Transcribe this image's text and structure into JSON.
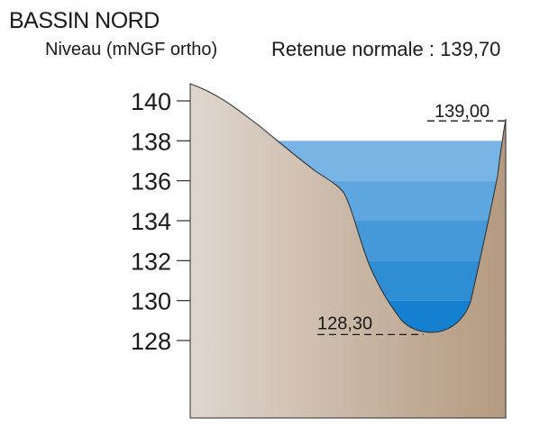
{
  "title": "BASSIN NORD",
  "axis_label": "Niveau (mNGF ortho)",
  "normal_level": "Retenue normale : 139,70",
  "ticks": [
    {
      "value": 140,
      "label": "140"
    },
    {
      "value": 138,
      "label": "138"
    },
    {
      "value": 136,
      "label": "136"
    },
    {
      "value": 134,
      "label": "134"
    },
    {
      "value": 132,
      "label": "132"
    },
    {
      "value": 130,
      "label": "130"
    },
    {
      "value": 128,
      "label": "128"
    }
  ],
  "annotations": {
    "crest": {
      "value": 139.0,
      "label": "139,00"
    },
    "bottom": {
      "value": 128.3,
      "label": "128,30"
    }
  },
  "water_bands": [
    {
      "from": 136,
      "to": 138,
      "color": "#79b4e6"
    },
    {
      "from": 134,
      "to": 136,
      "color": "#5ea6df"
    },
    {
      "from": 132,
      "to": 134,
      "color": "#4599d9"
    },
    {
      "from": 130,
      "to": 132,
      "color": "#2f8dd4"
    },
    {
      "from": 128.3,
      "to": 130,
      "color": "#1480cf"
    }
  ],
  "colors": {
    "ground_light": "#dfd6ce",
    "ground_dark": "#b49a80",
    "outline": "#2b2b2b",
    "dash": "#1a1a1a"
  }
}
